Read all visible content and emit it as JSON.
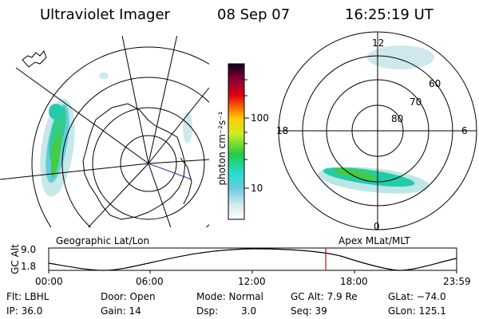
{
  "header": {
    "instrument": "Ultraviolet Imager",
    "date": "08 Sep 07",
    "time": "16:25:19 UT"
  },
  "left_panel": {
    "label": "Geographic Lat/Lon"
  },
  "right_panel": {
    "label": "Apex MLat/MLT",
    "lat_labels": [
      "60",
      "70",
      "80"
    ],
    "mlt_labels": {
      "top": "12",
      "left": "18",
      "right": "6",
      "bottom": "0"
    }
  },
  "colorbar": {
    "unit_label": "photon cm⁻²s⁻¹",
    "ticks": [
      "100",
      "10"
    ]
  },
  "altitude_plot": {
    "ylabel": "GC Alt",
    "ytick_top": "9.0",
    "ytick_bottom": "1.8",
    "xticks": [
      "00:00",
      "06:00",
      "12:00",
      "18:00",
      "23:59"
    ]
  },
  "footer": {
    "flt": "Flt: LBHL",
    "door": "Door: Open",
    "mode": "Mode: Normal",
    "gcalt": "GC Alt: 7.9 Re",
    "glat": "GLat: −74.0",
    "ip": "IP: 36.0",
    "gain": "Gain: 14",
    "dsp_label": "Dsp:",
    "dsp_value": "3.0",
    "seq": "Seq: 39",
    "glon": "GLon: 125.1"
  },
  "colors": {
    "marker": "#dd0000",
    "aurora_bright": "#44cc44",
    "aurora_mid": "#22ccaa",
    "aurora_dim": "#bfe6e6"
  }
}
